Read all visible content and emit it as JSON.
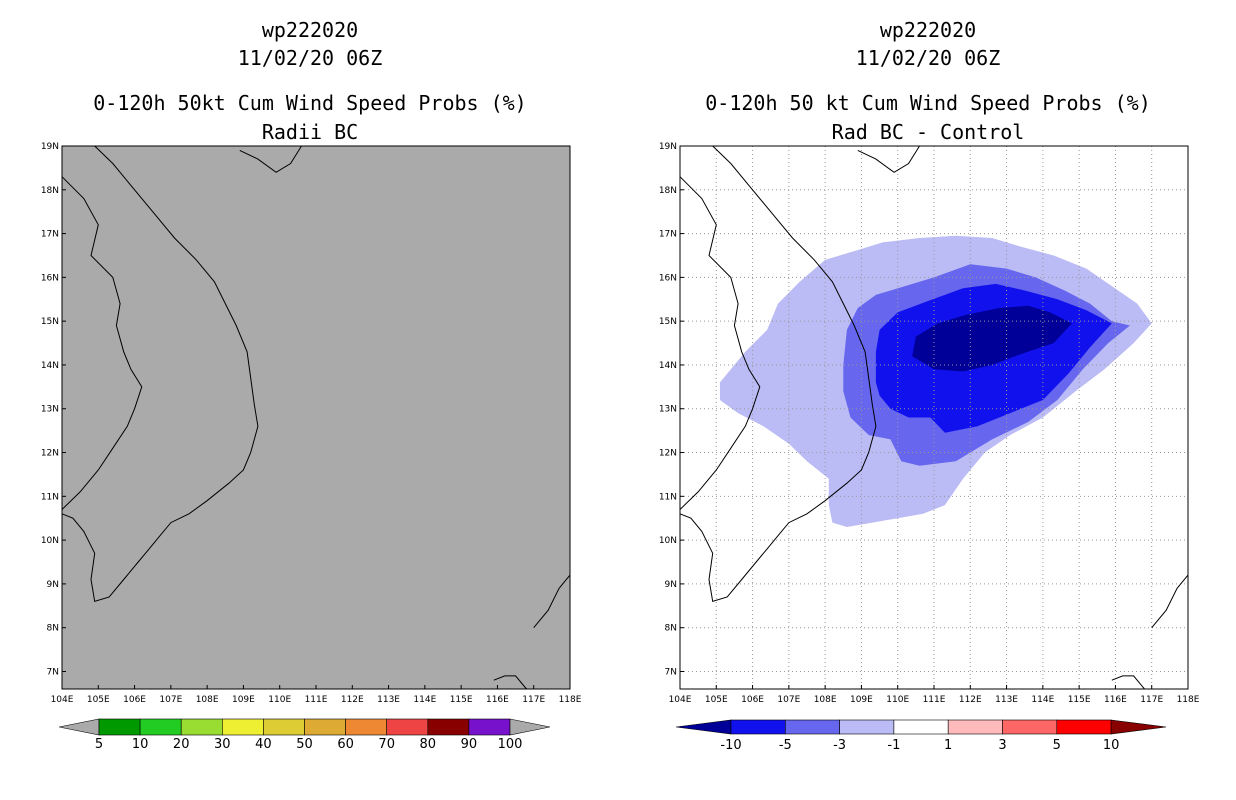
{
  "left_panel": {
    "title_line1": "wp222020",
    "title_line2": "11/02/20 06Z",
    "title_line3": "0-120h 50kt Cum Wind Speed Probs (%)",
    "title_line4": "Radii BC",
    "background_color": "#aaaaaa",
    "colorbar": {
      "labels": [
        "5",
        "10",
        "20",
        "30",
        "40",
        "50",
        "60",
        "70",
        "80",
        "90",
        "100"
      ],
      "colors": [
        "#009900",
        "#22cc22",
        "#99dd33",
        "#eeee33",
        "#ddcc33",
        "#ddaa33",
        "#ee8833",
        "#ee4444",
        "#880000",
        "#7711cc"
      ],
      "end_color": "#aaaaaa"
    }
  },
  "right_panel": {
    "title_line1": "wp222020",
    "title_line2": "11/02/20 06Z",
    "title_line3": "0-120h 50 kt Cum Wind Speed Probs (%)",
    "title_line4": "Rad BC - Control",
    "colorbar": {
      "labels": [
        "-10",
        "-5",
        "-3",
        "-1",
        "1",
        "3",
        "5",
        "10"
      ],
      "colors": [
        "#000099",
        "#1111ee",
        "#6666ee",
        "#bbbbf5",
        "#ffffff",
        "#ffbbbb",
        "#ff6666",
        "#ff0000",
        "#880000"
      ]
    }
  },
  "axes": {
    "x_labels": [
      "104E",
      "105E",
      "106E",
      "107E",
      "108E",
      "109E",
      "110E",
      "111E",
      "112E",
      "113E",
      "114E",
      "115E",
      "116E",
      "117E",
      "118E"
    ],
    "y_labels": [
      "19N",
      "18N",
      "17N",
      "16N",
      "15N",
      "14N",
      "13N",
      "12N",
      "11N",
      "10N",
      "9N",
      "8N",
      "7N"
    ]
  },
  "map_extent": {
    "lon_min": 104,
    "lon_max": 118,
    "lat_min": 6.6,
    "lat_max": 19
  },
  "difference_field": {
    "levels": [
      {
        "name": "-1 to -3",
        "color": "#bbbbf5",
        "polygon": [
          [
            105.1,
            13.6
          ],
          [
            105.8,
            14.3
          ],
          [
            106.4,
            14.8
          ],
          [
            106.7,
            15.4
          ],
          [
            107.3,
            15.9
          ],
          [
            108.0,
            16.4
          ],
          [
            108.8,
            16.6
          ],
          [
            109.6,
            16.8
          ],
          [
            110.6,
            16.9
          ],
          [
            111.6,
            16.95
          ],
          [
            112.6,
            16.9
          ],
          [
            113.4,
            16.7
          ],
          [
            114.3,
            16.5
          ],
          [
            115.2,
            16.2
          ],
          [
            115.9,
            15.8
          ],
          [
            116.6,
            15.4
          ],
          [
            117.0,
            14.95
          ],
          [
            116.5,
            14.5
          ],
          [
            115.7,
            13.9
          ],
          [
            114.9,
            13.4
          ],
          [
            114.0,
            12.8
          ],
          [
            113.1,
            12.4
          ],
          [
            112.4,
            12.0
          ],
          [
            111.8,
            11.4
          ],
          [
            111.3,
            10.8
          ],
          [
            110.7,
            10.6
          ],
          [
            110.0,
            10.5
          ],
          [
            109.3,
            10.4
          ],
          [
            108.6,
            10.3
          ],
          [
            108.2,
            10.4
          ],
          [
            108.1,
            10.8
          ],
          [
            108.1,
            11.4
          ],
          [
            107.5,
            11.8
          ],
          [
            107.0,
            12.2
          ],
          [
            106.3,
            12.6
          ],
          [
            105.6,
            12.9
          ],
          [
            105.1,
            13.2
          ]
        ]
      },
      {
        "name": "-3 to -5",
        "color": "#6666ee",
        "polygon": [
          [
            108.5,
            14.0
          ],
          [
            108.6,
            14.8
          ],
          [
            108.9,
            15.3
          ],
          [
            109.4,
            15.6
          ],
          [
            110.2,
            15.8
          ],
          [
            111.0,
            16.0
          ],
          [
            112.0,
            16.3
          ],
          [
            113.0,
            16.2
          ],
          [
            113.8,
            16.0
          ],
          [
            114.6,
            15.7
          ],
          [
            115.3,
            15.4
          ],
          [
            115.9,
            15.0
          ],
          [
            116.4,
            14.9
          ],
          [
            115.8,
            14.5
          ],
          [
            115.1,
            13.9
          ],
          [
            114.4,
            13.2
          ],
          [
            113.6,
            12.7
          ],
          [
            112.6,
            12.3
          ],
          [
            111.6,
            11.8
          ],
          [
            110.6,
            11.7
          ],
          [
            110.1,
            11.8
          ],
          [
            109.8,
            12.3
          ],
          [
            109.2,
            12.4
          ],
          [
            108.7,
            12.8
          ],
          [
            108.5,
            13.4
          ]
        ]
      },
      {
        "name": "-5 to -10",
        "color": "#1111ee",
        "polygon": [
          [
            109.4,
            13.6
          ],
          [
            109.4,
            14.3
          ],
          [
            109.5,
            14.8
          ],
          [
            110.0,
            15.2
          ],
          [
            110.8,
            15.45
          ],
          [
            111.8,
            15.75
          ],
          [
            112.7,
            15.85
          ],
          [
            113.5,
            15.7
          ],
          [
            114.4,
            15.5
          ],
          [
            115.2,
            15.25
          ],
          [
            115.9,
            14.95
          ],
          [
            115.3,
            14.4
          ],
          [
            114.7,
            13.8
          ],
          [
            114.0,
            13.2
          ],
          [
            113.1,
            12.9
          ],
          [
            112.2,
            12.6
          ],
          [
            111.3,
            12.45
          ],
          [
            110.9,
            12.8
          ],
          [
            110.3,
            12.8
          ],
          [
            109.8,
            13.0
          ],
          [
            109.5,
            13.3
          ]
        ]
      },
      {
        "name": "< -10",
        "color": "#000099",
        "polygon": [
          [
            110.4,
            14.2
          ],
          [
            110.5,
            14.65
          ],
          [
            111.1,
            14.95
          ],
          [
            111.9,
            15.15
          ],
          [
            112.8,
            15.3
          ],
          [
            113.6,
            15.35
          ],
          [
            114.2,
            15.2
          ],
          [
            114.8,
            14.95
          ],
          [
            114.3,
            14.5
          ],
          [
            113.4,
            14.25
          ],
          [
            112.6,
            14.0
          ],
          [
            111.8,
            13.85
          ],
          [
            111.0,
            13.9
          ]
        ]
      }
    ]
  },
  "coastlines": [
    [
      [
        104.0,
        18.3
      ],
      [
        104.6,
        17.8
      ],
      [
        105.0,
        17.2
      ],
      [
        104.8,
        16.5
      ],
      [
        105.4,
        16.0
      ],
      [
        105.6,
        15.4
      ],
      [
        105.5,
        14.9
      ],
      [
        105.7,
        14.3
      ],
      [
        105.9,
        13.9
      ],
      [
        106.2,
        13.5
      ],
      [
        106.0,
        13.0
      ],
      [
        105.8,
        12.6
      ],
      [
        105.4,
        12.1
      ],
      [
        105.0,
        11.6
      ],
      [
        104.5,
        11.1
      ],
      [
        104.0,
        10.7
      ]
    ],
    [
      [
        104.9,
        19.0
      ],
      [
        105.4,
        18.6
      ],
      [
        105.9,
        18.1
      ],
      [
        106.5,
        17.5
      ],
      [
        107.1,
        16.9
      ],
      [
        107.7,
        16.4
      ],
      [
        108.2,
        15.9
      ],
      [
        108.5,
        15.4
      ],
      [
        108.8,
        14.9
      ],
      [
        109.1,
        14.3
      ],
      [
        109.2,
        13.7
      ],
      [
        109.3,
        13.1
      ],
      [
        109.4,
        12.6
      ],
      [
        109.2,
        12.0
      ],
      [
        109.0,
        11.6
      ],
      [
        108.6,
        11.3
      ],
      [
        108.0,
        10.9
      ],
      [
        107.5,
        10.6
      ],
      [
        107.0,
        10.4
      ],
      [
        106.7,
        10.1
      ],
      [
        106.4,
        9.8
      ],
      [
        106.1,
        9.5
      ],
      [
        105.7,
        9.1
      ],
      [
        105.3,
        8.7
      ],
      [
        104.9,
        8.6
      ],
      [
        104.8,
        9.1
      ],
      [
        104.9,
        9.7
      ],
      [
        104.6,
        10.2
      ],
      [
        104.3,
        10.5
      ],
      [
        104.0,
        10.6
      ]
    ],
    [
      [
        108.9,
        18.9
      ],
      [
        109.4,
        18.7
      ],
      [
        109.9,
        18.4
      ],
      [
        110.3,
        18.6
      ],
      [
        110.6,
        19.0
      ]
    ],
    [
      [
        115.9,
        6.8
      ],
      [
        116.2,
        6.9
      ],
      [
        116.5,
        6.9
      ],
      [
        116.8,
        6.6
      ]
    ],
    [
      [
        117.0,
        8.0
      ],
      [
        117.4,
        8.4
      ],
      [
        117.7,
        8.9
      ],
      [
        118.0,
        9.2
      ]
    ]
  ]
}
